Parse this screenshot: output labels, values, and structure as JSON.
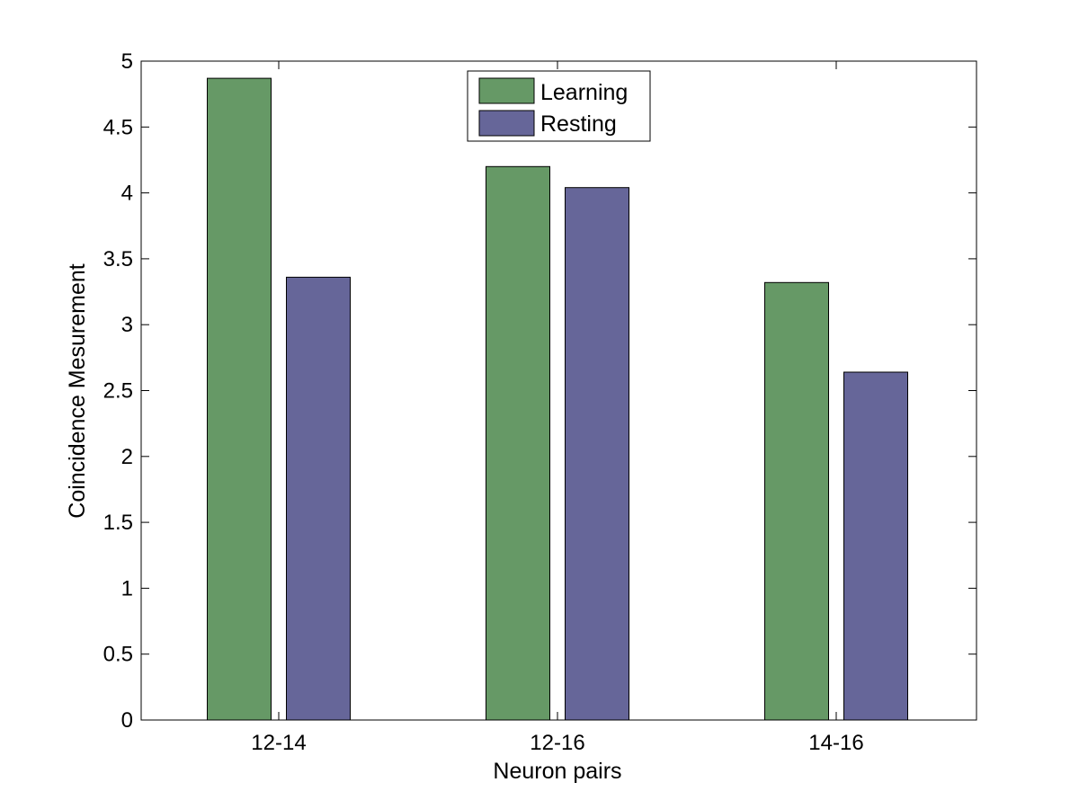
{
  "chart_data": {
    "type": "bar",
    "title": "",
    "xlabel": "Neuron pairs",
    "ylabel": "Coincidence Mesurement",
    "categories": [
      "12-14",
      "12-16",
      "14-16"
    ],
    "series": [
      {
        "name": "Learning",
        "color": "#669966",
        "values": [
          4.87,
          4.2,
          3.32
        ]
      },
      {
        "name": "Resting",
        "color": "#666699",
        "values": [
          3.36,
          4.04,
          2.64
        ]
      }
    ],
    "ylim": [
      0,
      5
    ],
    "yticks": [
      "0",
      "0.5",
      "1",
      "1.5",
      "2",
      "2.5",
      "3",
      "3.5",
      "4",
      "4.5",
      "5"
    ],
    "grid": false,
    "legend_position": "top-center"
  }
}
